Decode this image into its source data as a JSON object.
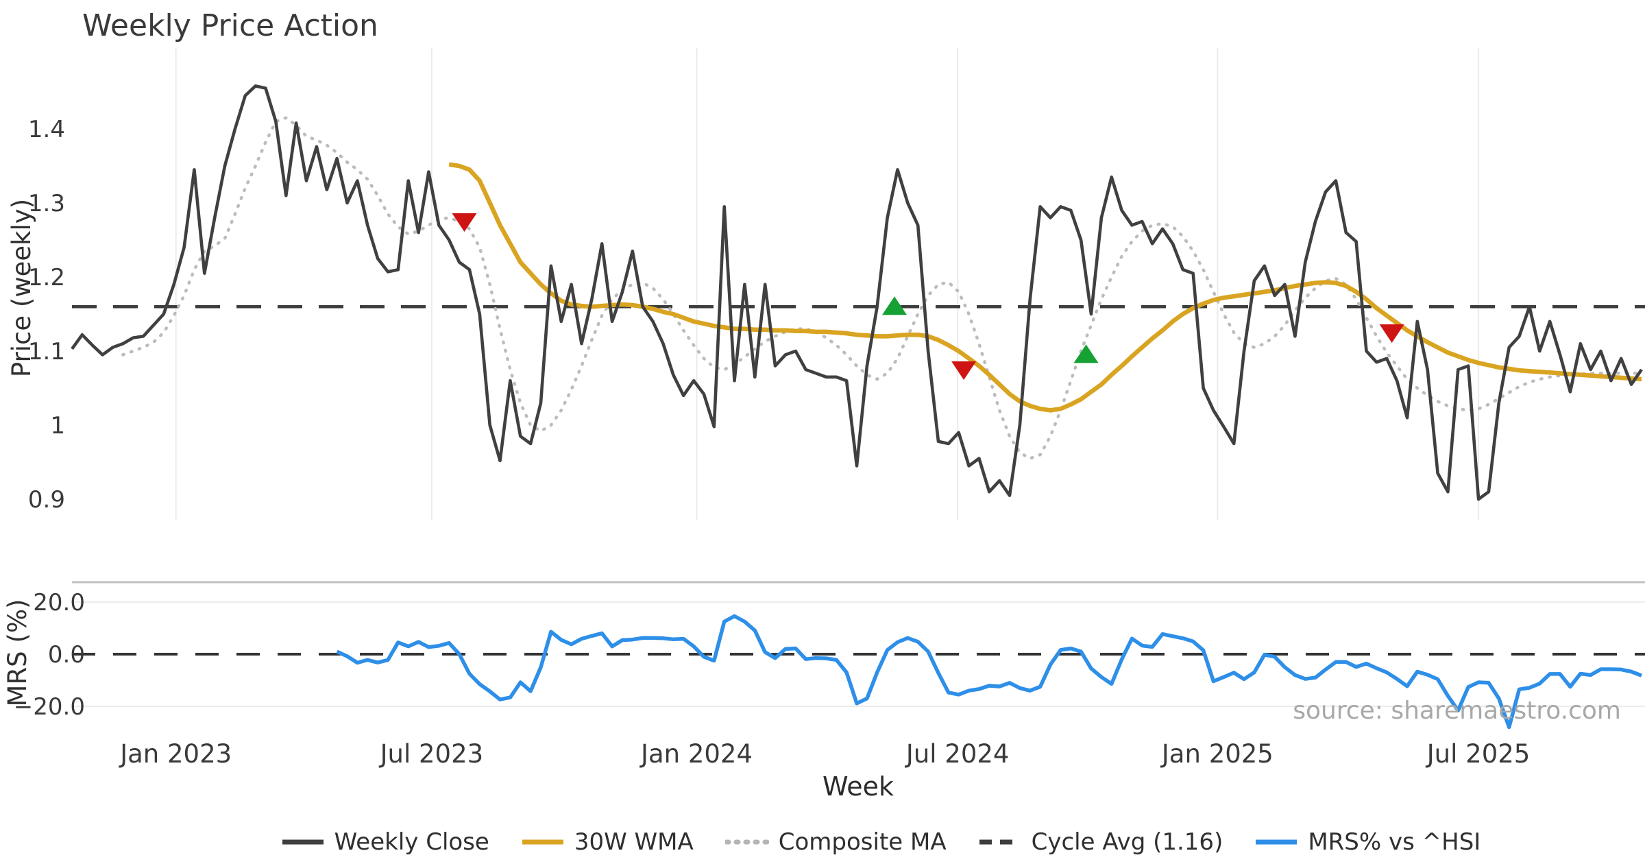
{
  "title": "Weekly Price Action",
  "source_note": "source: sharemaestro.com",
  "axes": {
    "price_axis_label": "Price (weekly)",
    "mrs_axis_label": "MRS (%)",
    "x_axis_label": "Week",
    "price_ticks": [
      {
        "label": "1.4",
        "value": 1.4
      },
      {
        "label": "1.3",
        "value": 1.3
      },
      {
        "label": "1.2",
        "value": 1.2
      },
      {
        "label": "1.1",
        "value": 1.1
      },
      {
        "label": "1",
        "value": 1.0
      },
      {
        "label": "0.9",
        "value": 0.9
      }
    ],
    "mrs_ticks": [
      {
        "label": "20.0",
        "value": 20
      },
      {
        "label": "0.0",
        "value": 0
      },
      {
        "label": "−20.0",
        "value": -20
      }
    ],
    "x_ticks": [
      {
        "label": "Jan 2023",
        "week": 10.2
      },
      {
        "label": "Jul 2023",
        "week": 35.3
      },
      {
        "label": "Jan 2024",
        "week": 61.3
      },
      {
        "label": "Jul 2024",
        "week": 86.9
      },
      {
        "label": "Jan 2025",
        "week": 112.4
      },
      {
        "label": "Jul 2025",
        "week": 138.0
      }
    ]
  },
  "legend": {
    "items": [
      {
        "label": "Weekly Close",
        "swatch": "solid",
        "color": "#3f3f3f"
      },
      {
        "label": "30W WMA",
        "swatch": "solid",
        "color": "#d9a421"
      },
      {
        "label": "Composite MA",
        "swatch": "dotted",
        "color": "#b5b5b5"
      },
      {
        "label": "Cycle Avg (1.16)",
        "swatch": "dashed",
        "color": "#3d3d3d"
      },
      {
        "label": "MRS% vs ^HSI",
        "swatch": "solid",
        "color": "#2e8fe8"
      }
    ]
  },
  "colors": {
    "weekly_close": "#404040",
    "wma30": "#d9a421",
    "composite": "#bcbcbc",
    "cycle_avg": "#3d3d3d",
    "mrs": "#2e8fe8",
    "buy_marker": "#16a134",
    "sell_marker": "#cf1414",
    "grid": "#ebebeb",
    "mrs_grid": "#ececec",
    "mrs_top_spine": "#c0c0c0",
    "tick_text": "#3a3a3a",
    "source_text": "#a8a8a8"
  },
  "chart_data": {
    "type": "line",
    "title": "Weekly Price Action",
    "x_unit": "weeks since 2022-10-31 (weekly samples)",
    "panels": [
      {
        "id": "price",
        "ylabel": "Price (weekly)",
        "ylim": [
          0.875,
          1.518
        ],
        "grid": "vertical"
      },
      {
        "id": "mrs",
        "ylabel": "MRS (%)",
        "ylim": [
          -31,
          27.6
        ],
        "grid": "horizontal"
      }
    ],
    "cycle_avg_value": 1.16,
    "series": [
      {
        "name": "Weekly Close",
        "panel": "price",
        "start_week": 0,
        "step": 1,
        "values": [
          1.103,
          1.122,
          1.108,
          1.095,
          1.105,
          1.11,
          1.118,
          1.12,
          1.135,
          1.15,
          1.19,
          1.24,
          1.345,
          1.205,
          1.28,
          1.35,
          1.4,
          1.445,
          1.458,
          1.455,
          1.41,
          1.31,
          1.408,
          1.33,
          1.376,
          1.318,
          1.36,
          1.3,
          1.33,
          1.27,
          1.225,
          1.207,
          1.21,
          1.33,
          1.26,
          1.342,
          1.27,
          1.25,
          1.22,
          1.21,
          1.15,
          1.0,
          0.952,
          1.06,
          0.985,
          0.975,
          1.03,
          1.215,
          1.14,
          1.19,
          1.11,
          1.17,
          1.245,
          1.14,
          1.18,
          1.235,
          1.16,
          1.14,
          1.11,
          1.068,
          1.04,
          1.06,
          1.042,
          0.998,
          1.295,
          1.06,
          1.19,
          1.065,
          1.19,
          1.08,
          1.095,
          1.1,
          1.075,
          1.07,
          1.065,
          1.065,
          1.06,
          0.945,
          1.08,
          1.16,
          1.28,
          1.345,
          1.3,
          1.27,
          1.1,
          0.978,
          0.975,
          0.99,
          0.945,
          0.955,
          0.91,
          0.925,
          0.905,
          1.0,
          1.17,
          1.295,
          1.28,
          1.295,
          1.29,
          1.25,
          1.15,
          1.28,
          1.335,
          1.29,
          1.27,
          1.275,
          1.245,
          1.265,
          1.245,
          1.21,
          1.205,
          1.05,
          1.02,
          0.998,
          0.975,
          1.1,
          1.195,
          1.215,
          1.175,
          1.19,
          1.12,
          1.22,
          1.275,
          1.315,
          1.33,
          1.26,
          1.248,
          1.1,
          1.085,
          1.09,
          1.06,
          1.01,
          1.14,
          1.075,
          0.935,
          0.91,
          1.075,
          1.08,
          0.9,
          0.91,
          1.03,
          1.105,
          1.12,
          1.16,
          1.1,
          1.14,
          1.095,
          1.045,
          1.11,
          1.075,
          1.1,
          1.06,
          1.09,
          1.055,
          1.075
        ]
      },
      {
        "name": "30W WMA",
        "panel": "price",
        "start_week": 37,
        "step": 1,
        "values": [
          1.352,
          1.35,
          1.345,
          1.33,
          1.3,
          1.27,
          1.245,
          1.22,
          1.205,
          1.19,
          1.178,
          1.168,
          1.163,
          1.161,
          1.16,
          1.161,
          1.162,
          1.163,
          1.162,
          1.16,
          1.157,
          1.153,
          1.15,
          1.145,
          1.14,
          1.137,
          1.134,
          1.132,
          1.13,
          1.13,
          1.129,
          1.129,
          1.128,
          1.128,
          1.127,
          1.127,
          1.126,
          1.126,
          1.125,
          1.124,
          1.122,
          1.121,
          1.12,
          1.12,
          1.121,
          1.122,
          1.122,
          1.12,
          1.115,
          1.108,
          1.1,
          1.09,
          1.08,
          1.068,
          1.055,
          1.042,
          1.032,
          1.026,
          1.022,
          1.02,
          1.022,
          1.028,
          1.035,
          1.045,
          1.055,
          1.068,
          1.08,
          1.093,
          1.105,
          1.117,
          1.128,
          1.14,
          1.15,
          1.158,
          1.164,
          1.169,
          1.172,
          1.174,
          1.176,
          1.178,
          1.18,
          1.182,
          1.185,
          1.188,
          1.19,
          1.192,
          1.193,
          1.192,
          1.188,
          1.18,
          1.17,
          1.158,
          1.148,
          1.138,
          1.128,
          1.12,
          1.112,
          1.105,
          1.098,
          1.093,
          1.088,
          1.084,
          1.081,
          1.078,
          1.076,
          1.074,
          1.073,
          1.072,
          1.071,
          1.07,
          1.069,
          1.068,
          1.067,
          1.066,
          1.065,
          1.064,
          1.063,
          1.062
        ]
      },
      {
        "name": "Composite MA",
        "panel": "price",
        "start_week": 5,
        "step": 1,
        "values": [
          1.095,
          1.1,
          1.105,
          1.112,
          1.125,
          1.148,
          1.175,
          1.21,
          1.235,
          1.242,
          1.252,
          1.285,
          1.32,
          1.35,
          1.382,
          1.41,
          1.415,
          1.405,
          1.39,
          1.385,
          1.378,
          1.368,
          1.355,
          1.345,
          1.332,
          1.31,
          1.285,
          1.268,
          1.258,
          1.262,
          1.27,
          1.278,
          1.28,
          1.275,
          1.265,
          1.24,
          1.19,
          1.13,
          1.075,
          1.03,
          1.0,
          0.992,
          1.0,
          1.02,
          1.048,
          1.08,
          1.115,
          1.148,
          1.17,
          1.183,
          1.19,
          1.192,
          1.185,
          1.17,
          1.15,
          1.128,
          1.108,
          1.09,
          1.078,
          1.075,
          1.082,
          1.092,
          1.103,
          1.113,
          1.12,
          1.126,
          1.13,
          1.13,
          1.126,
          1.118,
          1.108,
          1.095,
          1.08,
          1.068,
          1.062,
          1.07,
          1.09,
          1.12,
          1.15,
          1.175,
          1.19,
          1.193,
          1.18,
          1.15,
          1.11,
          1.065,
          1.02,
          0.985,
          0.963,
          0.955,
          0.96,
          0.985,
          1.02,
          1.06,
          1.1,
          1.135,
          1.17,
          1.2,
          1.228,
          1.248,
          1.262,
          1.27,
          1.272,
          1.268,
          1.255,
          1.235,
          1.21,
          1.18,
          1.15,
          1.125,
          1.11,
          1.105,
          1.11,
          1.12,
          1.135,
          1.155,
          1.172,
          1.185,
          1.195,
          1.198,
          1.19,
          1.17,
          1.145,
          1.12,
          1.098,
          1.08,
          1.062,
          1.05,
          1.04,
          1.032,
          1.026,
          1.022,
          1.02,
          1.022,
          1.028,
          1.036,
          1.044,
          1.052,
          1.058,
          1.062,
          1.065,
          1.067,
          1.068,
          1.069,
          1.07,
          1.07,
          1.07,
          1.07,
          1.07,
          1.07
        ]
      },
      {
        "name": "MRS% vs ^HSI",
        "panel": "mrs",
        "start_week": 26,
        "step": 1,
        "values": [
          1,
          -0.8,
          -3.3,
          -2.2,
          -3.2,
          -2.2,
          4.5,
          3,
          4.7,
          2.7,
          3.2,
          4.3,
          0,
          -7.5,
          -11.5,
          -14.3,
          -17.4,
          -16.6,
          -10.8,
          -14.2,
          -5,
          8.6,
          5.5,
          3.8,
          5.9,
          7,
          8,
          3,
          5.4,
          5.6,
          6.2,
          6.2,
          6.1,
          5.7,
          5.9,
          3,
          -1,
          -2.5,
          12.5,
          14.6,
          12.5,
          9.1,
          0.8,
          -1.5,
          2,
          2.2,
          -1.9,
          -1.5,
          -1.6,
          -2.2,
          -7,
          -18.9,
          -17,
          -7,
          1.6,
          4.6,
          6.2,
          4.8,
          1,
          -7.2,
          -14.7,
          -15.5,
          -14,
          -13.4,
          -12.1,
          -12.4,
          -11,
          -13,
          -14,
          -12.5,
          -4,
          1.6,
          2.2,
          1,
          -5.5,
          -8.8,
          -11.4,
          -2,
          6,
          3.3,
          2.8,
          7.7,
          6.9,
          6.1,
          4.9,
          1.5,
          -10.4,
          -8.8,
          -7.1,
          -9.6,
          -7,
          -0.2,
          -1,
          -5,
          -8,
          -9.5,
          -9,
          -5.9,
          -3,
          -3,
          -4.9,
          -3.6,
          -5.4,
          -7,
          -9.5,
          -12.3,
          -6.7,
          -7.9,
          -9.6,
          -16,
          -21.6,
          -12.6,
          -10.8,
          -11,
          -17,
          -28,
          -13.5,
          -12.9,
          -11.3,
          -7.6,
          -7.6,
          -12.5,
          -7.5,
          -8,
          -5.8,
          -5.8,
          -5.9,
          -6.7,
          -8.2
        ]
      }
    ],
    "signal_markers": [
      {
        "type": "sell",
        "week": 38.5,
        "price": 1.275
      },
      {
        "type": "buy",
        "week": 80.7,
        "price": 1.16
      },
      {
        "type": "sell",
        "week": 87.5,
        "price": 1.075
      },
      {
        "type": "buy",
        "week": 99.5,
        "price": 1.095
      },
      {
        "type": "sell",
        "week": 129.5,
        "price": 1.125
      }
    ]
  }
}
